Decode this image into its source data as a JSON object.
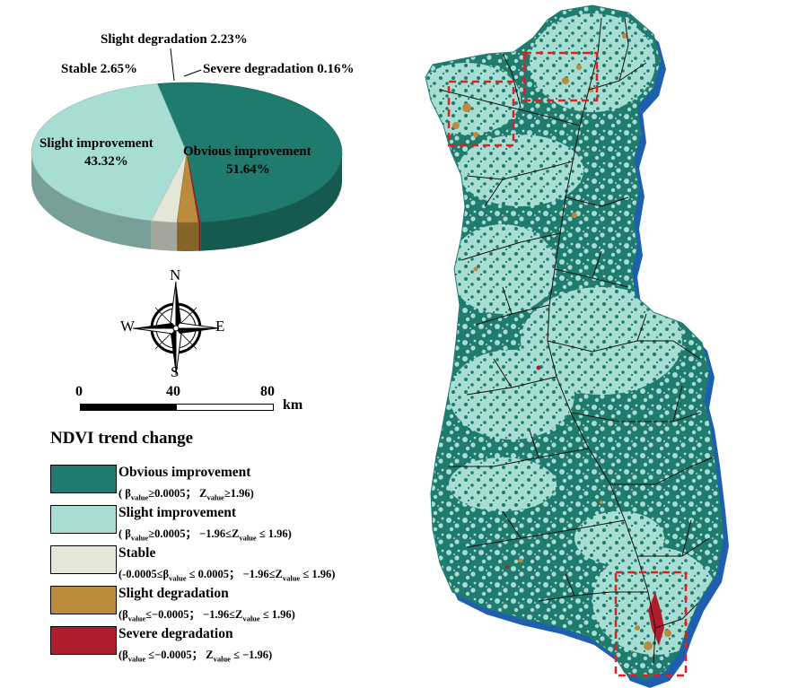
{
  "pie": {
    "labels": {
      "obvious_name": "Obvious improvement",
      "obvious_pct": "51.64%",
      "slight_imp_name": "Slight improvement",
      "slight_imp_pct": "43.32%",
      "stable": "Stable  2.65%",
      "slight_deg": "Slight degradation  2.23%",
      "severe_deg": "Severe degradation  0.16%"
    }
  },
  "chart_data": {
    "type": "pie",
    "categories": [
      "Obvious improvement",
      "Slight improvement",
      "Stable",
      "Slight degradation",
      "Severe degradation"
    ],
    "values": [
      51.64,
      43.32,
      2.65,
      2.23,
      0.16
    ],
    "colors": [
      "#1e7b6e",
      "#a8ddd4",
      "#e4e6d8",
      "#b98b3a",
      "#b01e2e"
    ],
    "style": "3d"
  },
  "compass": {
    "n": "N",
    "s": "S",
    "e": "E",
    "w": "W"
  },
  "scalebar": {
    "ticks": [
      "0",
      "40",
      "80"
    ],
    "unit": "km"
  },
  "legend": {
    "title": "NDVI trend change",
    "items": [
      {
        "name": "Obvious improvement",
        "color": "#1e7b6e",
        "cond": "( β<sub>value</sub>≥0.0005；  Z<sub>value</sub>≥1.96)"
      },
      {
        "name": "Slight improvement",
        "color": "#a8ddd4",
        "cond": "( β<sub>value</sub>≥0.0005；  −1.96≤Z<sub>value</sub> ≤ 1.96)"
      },
      {
        "name": "Stable",
        "color": "#e4e6d8",
        "cond": "(-0.0005≤β<sub>value</sub> ≤ 0.0005；  −1.96≤Z<sub>value</sub> ≤ 1.96)"
      },
      {
        "name": "Slight degradation",
        "color": "#b98b3a",
        "cond": "(β<sub>value</sub>≤−0.0005；  −1.96≤Z<sub>value</sub> ≤ 1.96)"
      },
      {
        "name": "Severe degradation",
        "color": "#b01e2e",
        "cond": "(β<sub>value</sub> ≤−0.0005；  Z<sub>value</sub> ≤ −1.96)"
      }
    ]
  },
  "map": {
    "colors": {
      "shadow": "#1f5fb0",
      "dark": "#1e7b6e",
      "light": "#a8ddd4",
      "stable": "#e4e6d8",
      "deg": "#b98b3a",
      "severe": "#b01e2e",
      "river": "#111111",
      "box": "#e02020"
    }
  }
}
